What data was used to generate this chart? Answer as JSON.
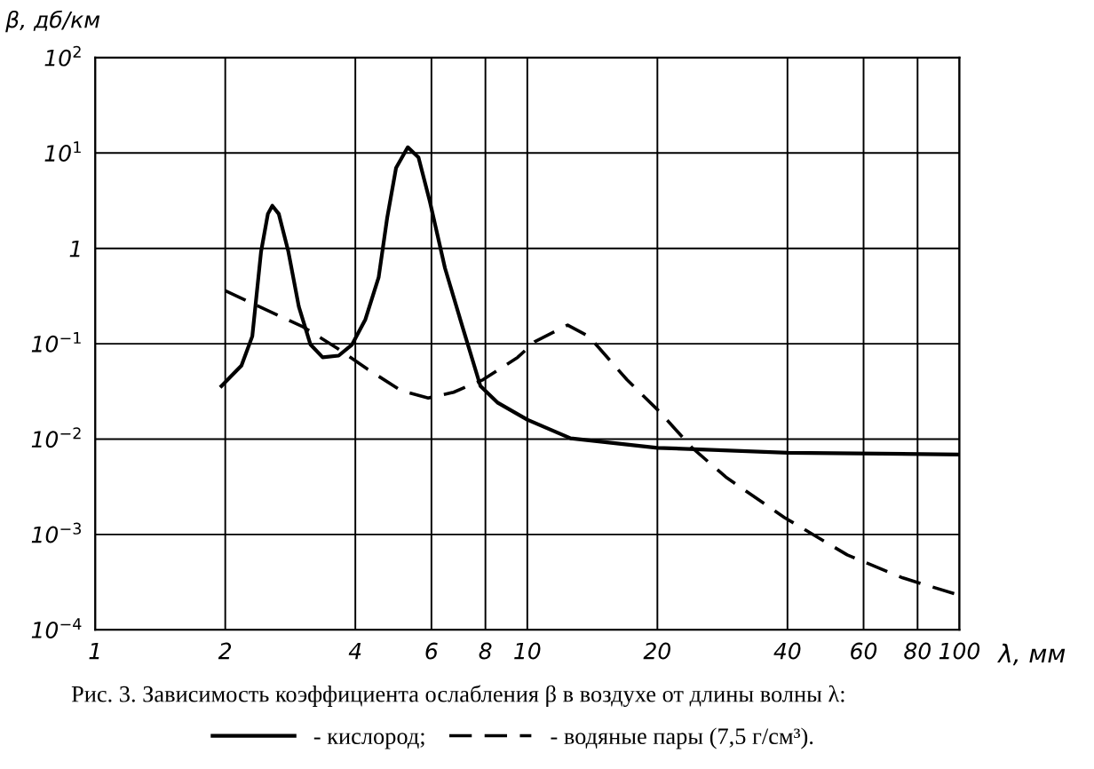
{
  "chart_data": {
    "type": "line",
    "ylabel": "β, дб/км",
    "xlabel": "λ, мм",
    "annotations": [
      "Рис. 3. Зависимость коэффициента ослабления β в воздухе от длины волны λ:"
    ],
    "log": "xy",
    "grid": true,
    "legend": "bottom",
    "marker": "none",
    "xlim": [
      1,
      100
    ],
    "ylim": [
      0.0001,
      100
    ],
    "xticks": [
      1,
      2,
      4,
      6,
      8,
      10,
      20,
      40,
      60,
      80,
      100
    ],
    "yticks": [
      {
        "value": 0.0001,
        "label": "10$^{−4}$"
      },
      {
        "value": 0.001,
        "label": "10$^{−3}$"
      },
      {
        "value": 0.01,
        "label": "10$^{−2}$"
      },
      {
        "value": 0.1,
        "label": "10$^{−1}$"
      },
      1,
      {
        "value": 10,
        "label": "10$^{1}$"
      },
      {
        "value": 100,
        "label": "10$^{2}$"
      }
    ],
    "series": [
      {
        "name": "- кислород;",
        "color": "#000000",
        "line_style": "solid",
        "x": [
          1.96,
          2.18,
          2.31,
          2.42,
          2.51,
          2.57,
          2.66,
          2.8,
          2.96,
          3.15,
          3.36,
          3.66,
          3.93,
          4.22,
          4.53,
          4.74,
          4.97,
          5.29,
          5.6,
          5.95,
          6.45,
          7.08,
          7.79,
          8.55,
          10,
          12.6,
          20,
          40,
          100
        ],
        "values": [
          0.036,
          0.059,
          0.12,
          0.92,
          2.3,
          2.8,
          2.3,
          0.92,
          0.245,
          0.098,
          0.072,
          0.075,
          0.098,
          0.18,
          0.5,
          2.1,
          7,
          11.5,
          9,
          3.1,
          0.62,
          0.15,
          0.036,
          0.024,
          0.016,
          0.0102,
          0.0081,
          0.0072,
          0.0069
        ]
      },
      {
        "name": "- водяные пары (7,5 г/см³).",
        "color": "#000000",
        "line_style": "dashed",
        "x": [
          2.0,
          2.4,
          3.03,
          3.64,
          4.27,
          5.12,
          5.9,
          6.75,
          7.9,
          9.5,
          10.4,
          12.4,
          13.9,
          17,
          20.2,
          24,
          28.8,
          39.4,
          55,
          74,
          100
        ],
        "values": [
          0.36,
          0.245,
          0.15,
          0.089,
          0.054,
          0.032,
          0.027,
          0.031,
          0.042,
          0.072,
          0.105,
          0.157,
          0.119,
          0.042,
          0.0195,
          0.0082,
          0.004,
          0.0015,
          0.00061,
          0.00035,
          0.00023
        ]
      }
    ]
  }
}
